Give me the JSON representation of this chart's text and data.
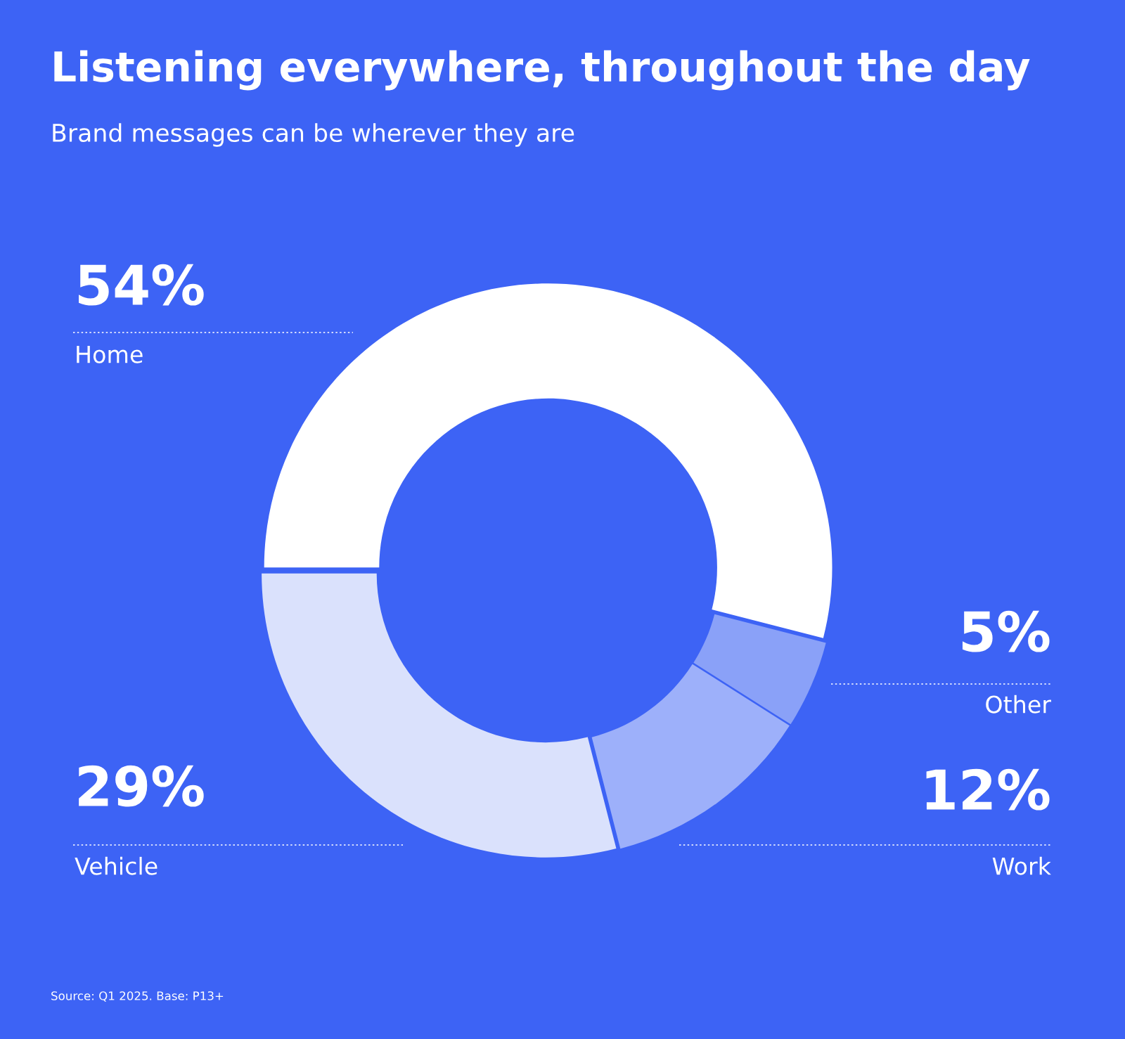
{
  "chart_data": {
    "type": "donut",
    "title": "Listening everywhere, throughout the day",
    "subtitle": "Brand messages can be wherever they are",
    "categories": [
      "Home",
      "Other",
      "Work",
      "Vehicle"
    ],
    "values": [
      54,
      5,
      12,
      29
    ],
    "value_labels": [
      "54%",
      "5%",
      "12%",
      "29%"
    ],
    "colors": [
      "#ffffff",
      "#8aa1f8",
      "#9db0fa",
      "#dae1fc"
    ],
    "annotations": [
      "Source: Q1 2025. Base: P13+"
    ],
    "legend": false
  }
}
